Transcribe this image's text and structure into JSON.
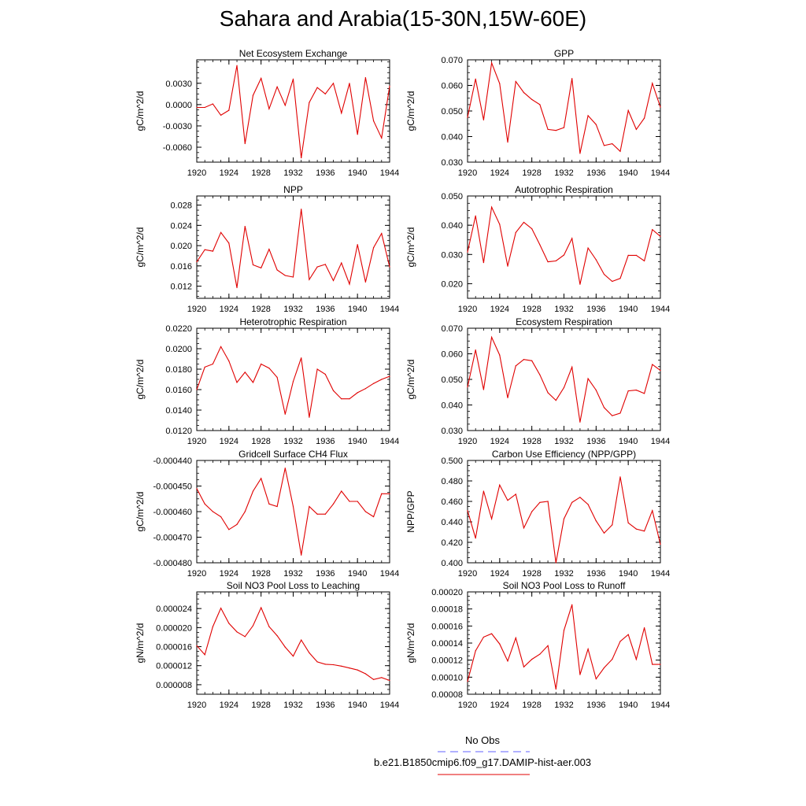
{
  "page": {
    "title": "Sahara and Arabia(15-30N,15W-60E)",
    "legend": [
      {
        "label": "No Obs",
        "color": "#6060ff",
        "dash": true
      },
      {
        "label": "b.e21.B1850cmip6.f09_g17.DAMIP-hist-aer.003",
        "color": "#e00000",
        "dash": false
      }
    ]
  },
  "chart_data": [
    {
      "type": "line",
      "title": "Net Ecosystem Exchange",
      "xlabel": "",
      "ylabel": "gC/m^2/d",
      "xlim": [
        1920,
        1944
      ],
      "ylim": [
        -0.0081,
        0.0063
      ],
      "xticks": [
        "1920",
        "1924",
        "1928",
        "1932",
        "1936",
        "1940",
        "1944"
      ],
      "yticks": [
        {
          "v": 0.003,
          "label": "0.0030"
        },
        {
          "v": 0.0,
          "label": "0.0000"
        },
        {
          "v": -0.003,
          "label": "-0.0030"
        },
        {
          "v": -0.006,
          "label": "-0.0060"
        }
      ],
      "series": [
        {
          "color": "#e00000",
          "x": [
            1920,
            1921,
            1922,
            1923,
            1924,
            1925,
            1926,
            1927,
            1928,
            1929,
            1930,
            1931,
            1932,
            1933,
            1934,
            1935,
            1936,
            1937,
            1938,
            1939,
            1940,
            1941,
            1942,
            1943,
            1944
          ],
          "y": [
            -0.0004,
            -0.0004,
            0.0001,
            -0.0015,
            -0.0008,
            0.0055,
            -0.0055,
            0.0013,
            0.0037,
            -0.0006,
            0.0025,
            -0.0001,
            0.0036,
            -0.0075,
            0.0003,
            0.0024,
            0.0015,
            0.003,
            -0.0012,
            0.003,
            -0.0042,
            0.0038,
            -0.0023,
            -0.0047,
            0.0026
          ]
        }
      ]
    },
    {
      "type": "line",
      "title": "GPP",
      "xlabel": "",
      "ylabel": "gC/m^2/d",
      "xlim": [
        1920,
        1944
      ],
      "ylim": [
        0.03,
        0.07
      ],
      "xticks": [
        "1920",
        "1924",
        "1928",
        "1932",
        "1936",
        "1940",
        "1944"
      ],
      "yticks": [
        {
          "v": 0.07,
          "label": "0.070"
        },
        {
          "v": 0.06,
          "label": "0.060"
        },
        {
          "v": 0.05,
          "label": "0.050"
        },
        {
          "v": 0.04,
          "label": "0.040"
        },
        {
          "v": 0.03,
          "label": "0.030"
        }
      ],
      "series": [
        {
          "color": "#e00000",
          "x": [
            1920,
            1921,
            1922,
            1923,
            1924,
            1925,
            1926,
            1927,
            1928,
            1929,
            1930,
            1931,
            1932,
            1933,
            1934,
            1935,
            1936,
            1937,
            1938,
            1939,
            1940,
            1941,
            1942,
            1943,
            1944
          ],
          "y": [
            0.0475,
            0.0625,
            0.0465,
            0.0688,
            0.0607,
            0.0378,
            0.0615,
            0.0572,
            0.0545,
            0.0525,
            0.0428,
            0.0424,
            0.0435,
            0.0627,
            0.0334,
            0.0482,
            0.0447,
            0.0365,
            0.0372,
            0.0342,
            0.0502,
            0.0428,
            0.0472,
            0.0608,
            0.0515
          ]
        }
      ]
    },
    {
      "type": "line",
      "title": "NPP",
      "xlabel": "",
      "ylabel": "gC/m^2/d",
      "xlim": [
        1920,
        1944
      ],
      "ylim": [
        0.0096,
        0.0298
      ],
      "xticks": [
        "1920",
        "1924",
        "1928",
        "1932",
        "1936",
        "1940",
        "1944"
      ],
      "yticks": [
        {
          "v": 0.028,
          "label": "0.028"
        },
        {
          "v": 0.024,
          "label": "0.024"
        },
        {
          "v": 0.02,
          "label": "0.020"
        },
        {
          "v": 0.016,
          "label": "0.016"
        },
        {
          "v": 0.012,
          "label": "0.012"
        }
      ],
      "series": [
        {
          "color": "#e00000",
          "x": [
            1920,
            1921,
            1922,
            1923,
            1924,
            1925,
            1926,
            1927,
            1928,
            1929,
            1930,
            1931,
            1932,
            1933,
            1934,
            1935,
            1936,
            1937,
            1938,
            1939,
            1940,
            1941,
            1942,
            1943,
            1944
          ],
          "y": [
            0.0168,
            0.0192,
            0.0189,
            0.0226,
            0.0205,
            0.0117,
            0.0238,
            0.0162,
            0.0156,
            0.0193,
            0.0152,
            0.0141,
            0.0138,
            0.0272,
            0.0133,
            0.0158,
            0.0163,
            0.0131,
            0.0166,
            0.0124,
            0.0202,
            0.0128,
            0.0196,
            0.0224,
            0.0158
          ]
        }
      ]
    },
    {
      "type": "line",
      "title": "Autotrophic Respiration",
      "xlabel": "",
      "ylabel": "gC/m^2/d",
      "xlim": [
        1920,
        1944
      ],
      "ylim": [
        0.015,
        0.05
      ],
      "xticks": [
        "1920",
        "1924",
        "1928",
        "1932",
        "1936",
        "1940",
        "1944"
      ],
      "yticks": [
        {
          "v": 0.05,
          "label": "0.050"
        },
        {
          "v": 0.04,
          "label": "0.040"
        },
        {
          "v": 0.03,
          "label": "0.030"
        },
        {
          "v": 0.02,
          "label": "0.020"
        }
      ],
      "series": [
        {
          "color": "#e00000",
          "x": [
            1920,
            1921,
            1922,
            1923,
            1924,
            1925,
            1926,
            1927,
            1928,
            1929,
            1930,
            1931,
            1932,
            1933,
            1934,
            1935,
            1936,
            1937,
            1938,
            1939,
            1940,
            1941,
            1942,
            1943,
            1944
          ],
          "y": [
            0.0308,
            0.0432,
            0.0272,
            0.0462,
            0.0403,
            0.026,
            0.0375,
            0.041,
            0.0388,
            0.0333,
            0.0275,
            0.0278,
            0.0298,
            0.0355,
            0.0198,
            0.0322,
            0.0282,
            0.0232,
            0.0208,
            0.0218,
            0.0297,
            0.0297,
            0.0278,
            0.0385,
            0.0362
          ]
        }
      ]
    },
    {
      "type": "line",
      "title": "Heterotrophic Respiration",
      "xlabel": "",
      "ylabel": "gC/m^2/d",
      "xlim": [
        1920,
        1944
      ],
      "ylim": [
        0.012,
        0.022
      ],
      "xticks": [
        "1920",
        "1924",
        "1928",
        "1932",
        "1936",
        "1940",
        "1944"
      ],
      "yticks": [
        {
          "v": 0.022,
          "label": "0.0220"
        },
        {
          "v": 0.02,
          "label": "0.0200"
        },
        {
          "v": 0.018,
          "label": "0.0180"
        },
        {
          "v": 0.016,
          "label": "0.0160"
        },
        {
          "v": 0.014,
          "label": "0.0140"
        },
        {
          "v": 0.012,
          "label": "0.0120"
        }
      ],
      "series": [
        {
          "color": "#e00000",
          "x": [
            1920,
            1921,
            1922,
            1923,
            1924,
            1925,
            1926,
            1927,
            1928,
            1929,
            1930,
            1931,
            1932,
            1933,
            1934,
            1935,
            1936,
            1937,
            1938,
            1939,
            1940,
            1941,
            1942,
            1943,
            1944
          ],
          "y": [
            0.016,
            0.0182,
            0.0185,
            0.0202,
            0.0188,
            0.0167,
            0.0177,
            0.0167,
            0.0185,
            0.0181,
            0.0172,
            0.0136,
            0.0168,
            0.0191,
            0.0133,
            0.018,
            0.0175,
            0.0159,
            0.0151,
            0.0151,
            0.0157,
            0.0161,
            0.0166,
            0.017,
            0.0173
          ]
        }
      ]
    },
    {
      "type": "line",
      "title": "Ecosystem Respiration",
      "xlabel": "",
      "ylabel": "gC/m^2/d",
      "xlim": [
        1920,
        1944
      ],
      "ylim": [
        0.03,
        0.07
      ],
      "xticks": [
        "1920",
        "1924",
        "1928",
        "1932",
        "1936",
        "1940",
        "1944"
      ],
      "yticks": [
        {
          "v": 0.07,
          "label": "0.070"
        },
        {
          "v": 0.06,
          "label": "0.060"
        },
        {
          "v": 0.05,
          "label": "0.050"
        },
        {
          "v": 0.04,
          "label": "0.040"
        },
        {
          "v": 0.03,
          "label": "0.030"
        }
      ],
      "series": [
        {
          "color": "#e00000",
          "x": [
            1920,
            1921,
            1922,
            1923,
            1924,
            1925,
            1926,
            1927,
            1928,
            1929,
            1930,
            1931,
            1932,
            1933,
            1934,
            1935,
            1936,
            1937,
            1938,
            1939,
            1940,
            1941,
            1942,
            1943,
            1944
          ],
          "y": [
            0.047,
            0.0615,
            0.046,
            0.0665,
            0.0595,
            0.0428,
            0.0553,
            0.0578,
            0.0573,
            0.0518,
            0.0448,
            0.0418,
            0.0468,
            0.0548,
            0.0333,
            0.0503,
            0.0458,
            0.039,
            0.0358,
            0.0368,
            0.0455,
            0.0458,
            0.0445,
            0.0558,
            0.0535
          ]
        }
      ]
    },
    {
      "type": "line",
      "title": "Gridcell Surface CH4 Flux",
      "xlabel": "",
      "ylabel": "gC/m^2/d",
      "xlim": [
        1920,
        1944
      ],
      "ylim": [
        -0.00048,
        -0.00044
      ],
      "xticks": [
        "1920",
        "1924",
        "1928",
        "1932",
        "1936",
        "1940",
        "1944"
      ],
      "yticks": [
        {
          "v": -0.00044,
          "label": "-0.000440"
        },
        {
          "v": -0.00045,
          "label": "-0.000450"
        },
        {
          "v": -0.00046,
          "label": "-0.000460"
        },
        {
          "v": -0.00047,
          "label": "-0.000470"
        },
        {
          "v": -0.00048,
          "label": "-0.000480"
        }
      ],
      "series": [
        {
          "color": "#e00000",
          "x": [
            1920,
            1921,
            1922,
            1923,
            1924,
            1925,
            1926,
            1927,
            1928,
            1929,
            1930,
            1931,
            1932,
            1933,
            1934,
            1935,
            1936,
            1937,
            1938,
            1939,
            1940,
            1941,
            1942,
            1943,
            1944
          ],
          "y": [
            -0.000451,
            -0.000457,
            -0.00046,
            -0.000462,
            -0.000467,
            -0.000465,
            -0.00046,
            -0.000452,
            -0.000447,
            -0.000457,
            -0.000458,
            -0.000443,
            -0.000458,
            -0.000477,
            -0.000458,
            -0.000461,
            -0.000461,
            -0.000457,
            -0.000452,
            -0.000456,
            -0.000456,
            -0.00046,
            -0.000462,
            -0.000453,
            -0.000453
          ]
        }
      ]
    },
    {
      "type": "line",
      "title": "Carbon Use Efficiency (NPP/GPP)",
      "xlabel": "",
      "ylabel": "NPP/GPP",
      "xlim": [
        1920,
        1944
      ],
      "ylim": [
        0.4,
        0.5
      ],
      "xticks": [
        "1920",
        "1924",
        "1928",
        "1932",
        "1936",
        "1940",
        "1944"
      ],
      "yticks": [
        {
          "v": 0.5,
          "label": "0.500"
        },
        {
          "v": 0.48,
          "label": "0.480"
        },
        {
          "v": 0.46,
          "label": "0.460"
        },
        {
          "v": 0.44,
          "label": "0.440"
        },
        {
          "v": 0.42,
          "label": "0.420"
        },
        {
          "v": 0.4,
          "label": "0.400"
        }
      ],
      "series": [
        {
          "color": "#e00000",
          "x": [
            1920,
            1921,
            1922,
            1923,
            1924,
            1925,
            1926,
            1927,
            1928,
            1929,
            1930,
            1931,
            1932,
            1933,
            1934,
            1935,
            1936,
            1937,
            1938,
            1939,
            1940,
            1941,
            1942,
            1943,
            1944
          ],
          "y": [
            0.451,
            0.424,
            0.47,
            0.443,
            0.476,
            0.461,
            0.467,
            0.434,
            0.45,
            0.459,
            0.46,
            0.4,
            0.443,
            0.459,
            0.464,
            0.457,
            0.441,
            0.429,
            0.437,
            0.484,
            0.439,
            0.433,
            0.431,
            0.451,
            0.418
          ]
        }
      ]
    },
    {
      "type": "line",
      "title": "Soil NO3 Pool Loss to Leaching",
      "xlabel": "",
      "ylabel": "gN/m^2/d",
      "xlim": [
        1920,
        1944
      ],
      "ylim": [
        6e-06,
        2.75e-05
      ],
      "xticks": [
        "1920",
        "1924",
        "1928",
        "1932",
        "1936",
        "1940",
        "1944"
      ],
      "yticks": [
        {
          "v": 2.4e-05,
          "label": "0.000024"
        },
        {
          "v": 2e-05,
          "label": "0.000020"
        },
        {
          "v": 1.6e-05,
          "label": "0.000016"
        },
        {
          "v": 1.2e-05,
          "label": "0.000012"
        },
        {
          "v": 8e-06,
          "label": "0.000008"
        }
      ],
      "series": [
        {
          "color": "#e00000",
          "x": [
            1920,
            1921,
            1922,
            1923,
            1924,
            1925,
            1926,
            1927,
            1928,
            1929,
            1930,
            1931,
            1932,
            1933,
            1934,
            1935,
            1936,
            1937,
            1938,
            1939,
            1940,
            1941,
            1942,
            1943,
            1944
          ],
          "y": [
            1.62e-05,
            1.43e-05,
            2.02e-05,
            2.41e-05,
            2.09e-05,
            1.91e-05,
            1.81e-05,
            2.04e-05,
            2.42e-05,
            2.02e-05,
            1.83e-05,
            1.59e-05,
            1.4e-05,
            1.74e-05,
            1.47e-05,
            1.28e-05,
            1.23e-05,
            1.22e-05,
            1.19e-05,
            1.15e-05,
            1.11e-05,
            1.03e-05,
            9.1e-06,
            9.5e-06,
            8.9e-06
          ]
        }
      ]
    },
    {
      "type": "line",
      "title": "Soil NO3 Pool Loss to Runoff",
      "xlabel": "",
      "ylabel": "gN/m^2/d",
      "xlim": [
        1920,
        1944
      ],
      "ylim": [
        8e-05,
        0.0002
      ],
      "xticks": [
        "1920",
        "1924",
        "1928",
        "1932",
        "1936",
        "1940",
        "1944"
      ],
      "yticks": [
        {
          "v": 0.0002,
          "label": "0.00020"
        },
        {
          "v": 0.00018,
          "label": "0.00018"
        },
        {
          "v": 0.00016,
          "label": "0.00016"
        },
        {
          "v": 0.00014,
          "label": "0.00014"
        },
        {
          "v": 0.00012,
          "label": "0.00012"
        },
        {
          "v": 0.0001,
          "label": "0.00010"
        },
        {
          "v": 8e-05,
          "label": "0.00008"
        }
      ],
      "series": [
        {
          "color": "#e00000",
          "x": [
            1920,
            1921,
            1922,
            1923,
            1924,
            1925,
            1926,
            1927,
            1928,
            1929,
            1930,
            1931,
            1932,
            1933,
            1934,
            1935,
            1936,
            1937,
            1938,
            1939,
            1940,
            1941,
            1942,
            1943,
            1944
          ],
          "y": [
            9.5e-05,
            0.000131,
            0.000147,
            0.000151,
            0.000139,
            0.000119,
            0.000146,
            0.000112,
            0.000121,
            0.000127,
            0.000137,
            8.6e-05,
            0.000155,
            0.000185,
            0.000103,
            0.000133,
            9.8e-05,
            0.000111,
            0.000121,
            0.000142,
            0.00015,
            0.000121,
            0.000158,
            0.000115,
            0.000115
          ]
        }
      ]
    }
  ]
}
